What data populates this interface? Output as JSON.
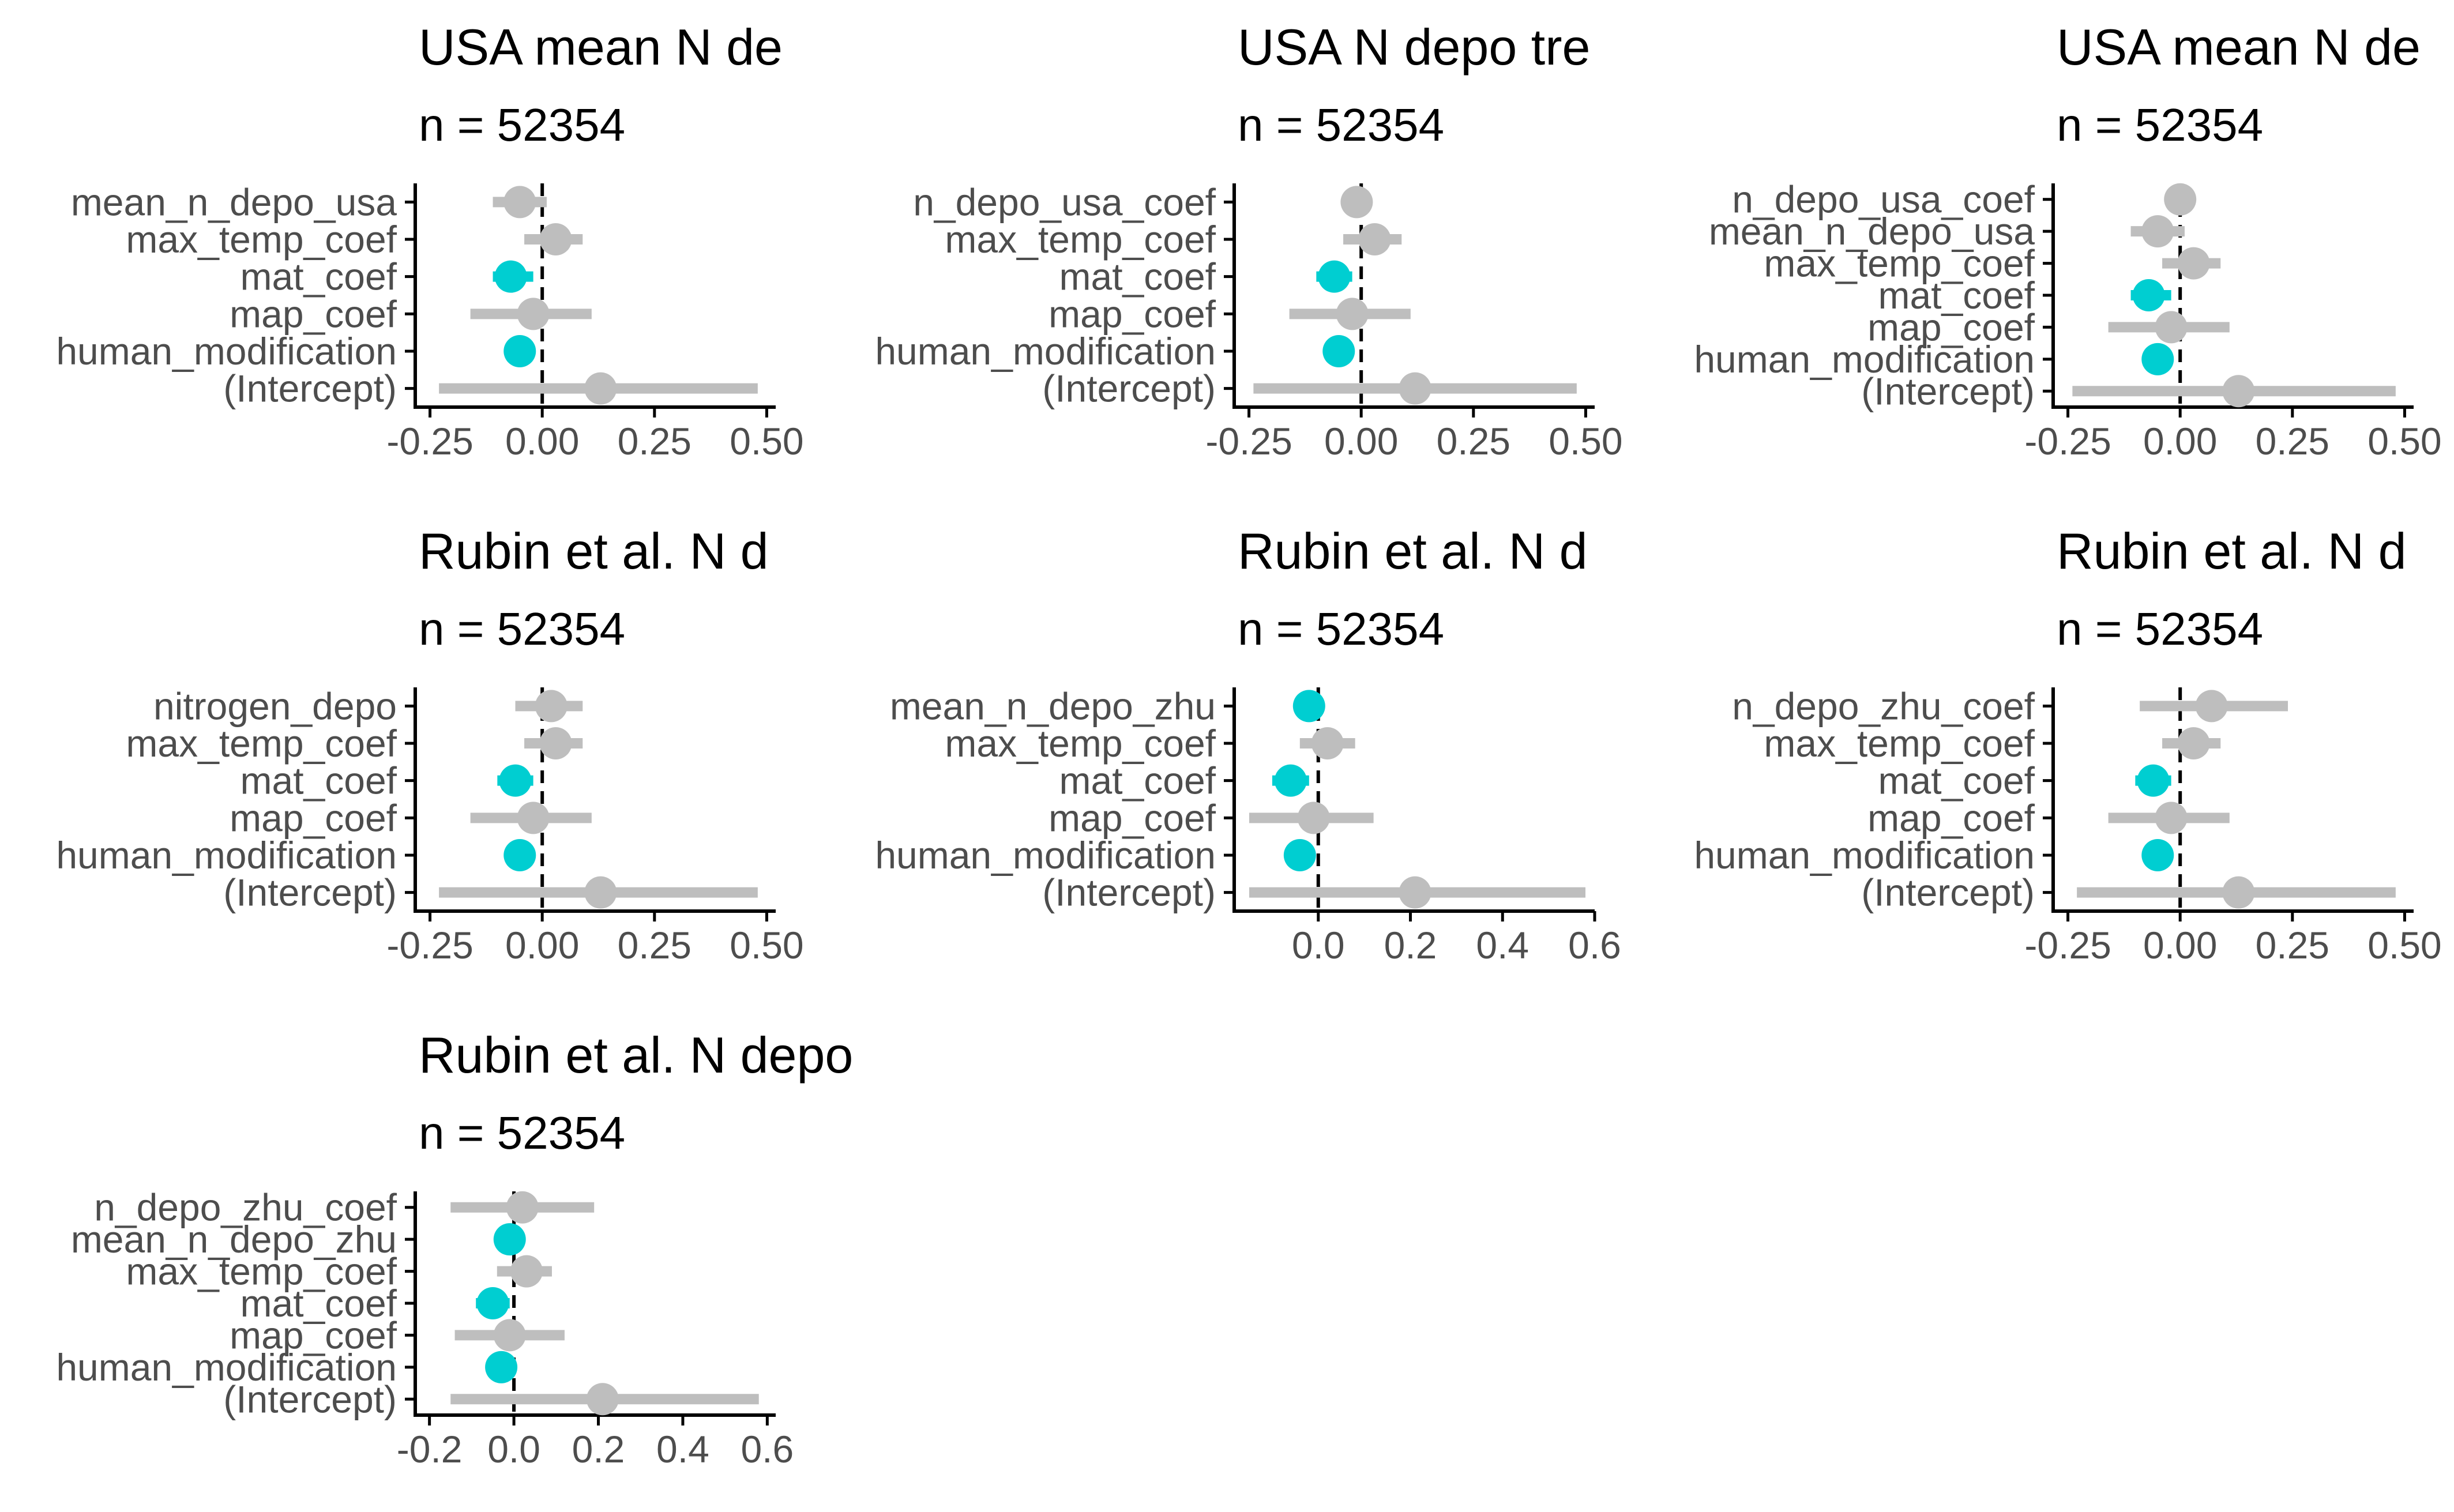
{
  "colors": {
    "significant": "#00CED1",
    "not_significant": "#BEBEBE",
    "axis": "#000000",
    "zero_line": "#000000",
    "tick_label": "#4D4D4D"
  },
  "chart_data": [
    {
      "type": "scatter",
      "title": "USA mean N de",
      "subtitle": "n = 52354",
      "xticks": [
        "-0.25",
        "0.00",
        "0.25",
        "0.50"
      ],
      "xlim": [
        -0.27,
        0.52
      ],
      "terms": [
        {
          "label": "mean_n_depo_usa",
          "estimate": -0.05,
          "low": -0.11,
          "high": 0.01,
          "significant": false
        },
        {
          "label": "max_temp_coef",
          "estimate": 0.03,
          "low": -0.04,
          "high": 0.09,
          "significant": false
        },
        {
          "label": "mat_coef",
          "estimate": -0.07,
          "low": -0.11,
          "high": -0.02,
          "significant": true
        },
        {
          "label": "map_coef",
          "estimate": -0.02,
          "low": -0.16,
          "high": 0.11,
          "significant": false
        },
        {
          "label": "human_modification",
          "estimate": -0.05,
          "low": -0.07,
          "high": -0.02,
          "significant": true
        },
        {
          "label": "(Intercept)",
          "estimate": 0.13,
          "low": -0.23,
          "high": 0.48,
          "significant": false
        }
      ]
    },
    {
      "type": "scatter",
      "title": "USA N depo tre",
      "subtitle": "n = 52354",
      "xticks": [
        "-0.25",
        "0.00",
        "0.25",
        "0.50"
      ],
      "xlim": [
        -0.27,
        0.52
      ],
      "terms": [
        {
          "label": "n_depo_usa_coef",
          "estimate": -0.01,
          "low": -0.04,
          "high": 0.02,
          "significant": false
        },
        {
          "label": "max_temp_coef",
          "estimate": 0.03,
          "low": -0.04,
          "high": 0.09,
          "significant": false
        },
        {
          "label": "mat_coef",
          "estimate": -0.06,
          "low": -0.1,
          "high": -0.02,
          "significant": true
        },
        {
          "label": "map_coef",
          "estimate": -0.02,
          "low": -0.16,
          "high": 0.11,
          "significant": false
        },
        {
          "label": "human_modification",
          "estimate": -0.05,
          "low": -0.07,
          "high": -0.02,
          "significant": true
        },
        {
          "label": "(Intercept)",
          "estimate": 0.12,
          "low": -0.24,
          "high": 0.48,
          "significant": false
        }
      ]
    },
    {
      "type": "scatter",
      "title": "USA mean N de",
      "subtitle": "n = 52354",
      "xticks": [
        "-0.25",
        "0.00",
        "0.25",
        "0.50"
      ],
      "xlim": [
        -0.27,
        0.52
      ],
      "terms": [
        {
          "label": "n_depo_usa_coef",
          "estimate": 0.0,
          "low": -0.02,
          "high": 0.02,
          "significant": false
        },
        {
          "label": "mean_n_depo_usa",
          "estimate": -0.05,
          "low": -0.11,
          "high": 0.01,
          "significant": false
        },
        {
          "label": "max_temp_coef",
          "estimate": 0.03,
          "low": -0.04,
          "high": 0.09,
          "significant": false
        },
        {
          "label": "mat_coef",
          "estimate": -0.07,
          "low": -0.11,
          "high": -0.02,
          "significant": true
        },
        {
          "label": "map_coef",
          "estimate": -0.02,
          "low": -0.16,
          "high": 0.11,
          "significant": false
        },
        {
          "label": "human_modification",
          "estimate": -0.05,
          "low": -0.07,
          "high": -0.02,
          "significant": true
        },
        {
          "label": "(Intercept)",
          "estimate": 0.13,
          "low": -0.24,
          "high": 0.48,
          "significant": false
        }
      ]
    },
    {
      "type": "scatter",
      "title": "Rubin et al. N d",
      "subtitle": "n = 52354",
      "xticks": [
        "-0.25",
        "0.00",
        "0.25",
        "0.50"
      ],
      "xlim": [
        -0.27,
        0.52
      ],
      "terms": [
        {
          "label": "nitrogen_depo",
          "estimate": 0.02,
          "low": -0.06,
          "high": 0.09,
          "significant": false
        },
        {
          "label": "max_temp_coef",
          "estimate": 0.03,
          "low": -0.04,
          "high": 0.09,
          "significant": false
        },
        {
          "label": "mat_coef",
          "estimate": -0.06,
          "low": -0.1,
          "high": -0.02,
          "significant": true
        },
        {
          "label": "map_coef",
          "estimate": -0.02,
          "low": -0.16,
          "high": 0.11,
          "significant": false
        },
        {
          "label": "human_modification",
          "estimate": -0.05,
          "low": -0.07,
          "high": -0.02,
          "significant": true
        },
        {
          "label": "(Intercept)",
          "estimate": 0.13,
          "low": -0.23,
          "high": 0.48,
          "significant": false
        }
      ]
    },
    {
      "type": "scatter",
      "title": "Rubin et al. N d",
      "subtitle": "n = 52354",
      "xticks": [
        "0.0",
        "0.2",
        "0.4",
        "0.6"
      ],
      "xlim": [
        -0.17,
        0.6
      ],
      "terms": [
        {
          "label": "mean_n_depo_zhu",
          "estimate": -0.02,
          "low": -0.04,
          "high": 0.0,
          "significant": true
        },
        {
          "label": "max_temp_coef",
          "estimate": 0.02,
          "low": -0.04,
          "high": 0.08,
          "significant": false
        },
        {
          "label": "mat_coef",
          "estimate": -0.06,
          "low": -0.1,
          "high": -0.02,
          "significant": true
        },
        {
          "label": "map_coef",
          "estimate": -0.01,
          "low": -0.15,
          "high": 0.12,
          "significant": false
        },
        {
          "label": "human_modification",
          "estimate": -0.04,
          "low": -0.06,
          "high": -0.01,
          "significant": true
        },
        {
          "label": "(Intercept)",
          "estimate": 0.21,
          "low": -0.15,
          "high": 0.58,
          "significant": false
        }
      ]
    },
    {
      "type": "scatter",
      "title": "Rubin et al. N d",
      "subtitle": "n = 52354",
      "xticks": [
        "-0.25",
        "0.00",
        "0.25",
        "0.50"
      ],
      "xlim": [
        -0.27,
        0.52
      ],
      "terms": [
        {
          "label": "n_depo_zhu_coef",
          "estimate": 0.07,
          "low": -0.09,
          "high": 0.24,
          "significant": false
        },
        {
          "label": "max_temp_coef",
          "estimate": 0.03,
          "low": -0.04,
          "high": 0.09,
          "significant": false
        },
        {
          "label": "mat_coef",
          "estimate": -0.06,
          "low": -0.1,
          "high": -0.02,
          "significant": true
        },
        {
          "label": "map_coef",
          "estimate": -0.02,
          "low": -0.16,
          "high": 0.11,
          "significant": false
        },
        {
          "label": "human_modification",
          "estimate": -0.05,
          "low": -0.07,
          "high": -0.02,
          "significant": true
        },
        {
          "label": "(Intercept)",
          "estimate": 0.13,
          "low": -0.23,
          "high": 0.48,
          "significant": false
        }
      ]
    },
    {
      "type": "scatter",
      "title": "Rubin et al. N depo",
      "subtitle": "n = 52354",
      "xticks": [
        "-0.2",
        "0.0",
        "0.2",
        "0.4",
        "0.6"
      ],
      "xlim": [
        -0.22,
        0.62
      ],
      "terms": [
        {
          "label": "n_depo_zhu_coef",
          "estimate": 0.02,
          "low": -0.15,
          "high": 0.19,
          "significant": false
        },
        {
          "label": "mean_n_depo_zhu",
          "estimate": -0.01,
          "low": -0.04,
          "high": 0.01,
          "significant": true
        },
        {
          "label": "max_temp_coef",
          "estimate": 0.03,
          "low": -0.04,
          "high": 0.09,
          "significant": false
        },
        {
          "label": "mat_coef",
          "estimate": -0.05,
          "low": -0.09,
          "high": -0.01,
          "significant": true
        },
        {
          "label": "map_coef",
          "estimate": -0.01,
          "low": -0.14,
          "high": 0.12,
          "significant": false
        },
        {
          "label": "human_modification",
          "estimate": -0.03,
          "low": -0.05,
          "high": -0.01,
          "significant": true
        },
        {
          "label": "(Intercept)",
          "estimate": 0.21,
          "low": -0.15,
          "high": 0.58,
          "significant": false
        }
      ]
    }
  ]
}
